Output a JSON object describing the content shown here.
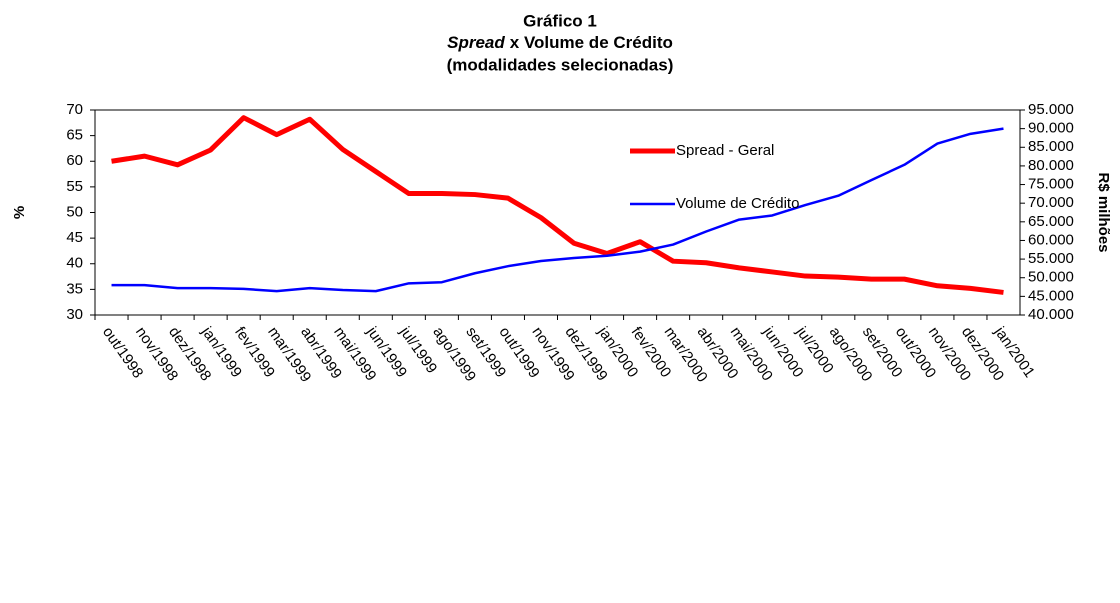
{
  "chart_data": {
    "type": "line",
    "title": [
      "Gráfico 1",
      [
        "Spread",
        "x Volume de Crédito"
      ],
      "(modalidades selecionadas)"
    ],
    "y_label": "%",
    "y2_label": "R$ milhões",
    "categories": [
      "out/1998",
      "nov/1998",
      "dez/1998",
      "jan/1999",
      "fev/1999",
      "mar/1999",
      "abr/1999",
      "mai/1999",
      "jun/1999",
      "jul/1999",
      "ago/1999",
      "set/1999",
      "out/1999",
      "nov/1999",
      "dez/1999",
      "jan/2000",
      "fev/2000",
      "mar/2000",
      "abr/2000",
      "mai/2000",
      "jun/2000",
      "jul/2000",
      "ago/2000",
      "set/2000",
      "out/2000",
      "nov/2000",
      "dez/2000",
      "jan/2001"
    ],
    "series": [
      {
        "name": "Spread - Geral",
        "color": "#ff0000",
        "axis": "y",
        "values": [
          60,
          61,
          59.3,
          62.2,
          68.5,
          65.2,
          68.2,
          62.3,
          58,
          53.7,
          53.7,
          53.5,
          52.8,
          49,
          44,
          42,
          44.3,
          40.5,
          40.2,
          39.2,
          38.4,
          37.6,
          37.4,
          37,
          37,
          35.7,
          35.2,
          34.4
        ]
      },
      {
        "name": "Volume de Crédito",
        "color": "#0000ff",
        "axis": "y2",
        "values": [
          48000,
          48000,
          47200,
          47200,
          47000,
          46400,
          47200,
          46700,
          46400,
          48500,
          48800,
          51200,
          53100,
          54500,
          55300,
          55900,
          57000,
          58900,
          62400,
          65600,
          66700,
          69500,
          72000,
          76200,
          80300,
          86000,
          88600,
          90000
        ]
      }
    ],
    "ylim": [
      30,
      70
    ],
    "yticks": [
      30,
      35,
      40,
      45,
      50,
      55,
      60,
      65,
      70
    ],
    "y2lim": [
      40000,
      95000
    ],
    "y2ticks": [
      {
        "value": 40000,
        "label": "40.000"
      },
      {
        "value": 45000,
        "label": "45.000"
      },
      {
        "value": 50000,
        "label": "50.000"
      },
      {
        "value": 55000,
        "label": "55.000"
      },
      {
        "value": 60000,
        "label": "60.000"
      },
      {
        "value": 65000,
        "label": "65.000"
      },
      {
        "value": 70000,
        "label": "70.000"
      },
      {
        "value": 75000,
        "label": "75.000"
      },
      {
        "value": 80000,
        "label": "80.000"
      },
      {
        "value": 85000,
        "label": "85.000"
      },
      {
        "value": 90000,
        "label": "90.000"
      },
      {
        "value": 95000,
        "label": "95.000"
      }
    ],
    "legend": "upper right",
    "grid": false
  }
}
